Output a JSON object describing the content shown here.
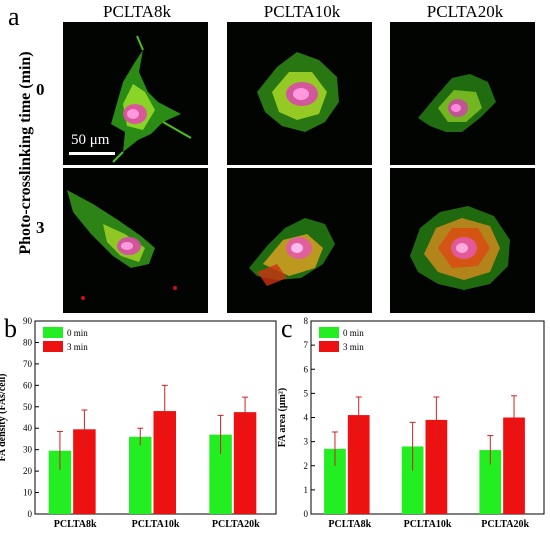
{
  "panel_a": {
    "letter": "a",
    "columns": [
      "PCLTA8k",
      "PCLTA10k",
      "PCLTA20k"
    ],
    "y_title": "Photo-crosslinking time (min)",
    "rows": [
      "0",
      "3"
    ],
    "scale_label": "50 μm"
  },
  "colors": {
    "green": "#22ee22",
    "red": "#ee1111",
    "pink": "#ff88ee"
  },
  "chart_data": [
    {
      "type": "bar",
      "panel": "b",
      "categories": [
        "PCLTA8k",
        "PCLTA10k",
        "PCLTA20k"
      ],
      "series": [
        {
          "name": "0 min",
          "values": [
            29.5,
            36,
            37
          ],
          "errors": [
            9,
            4,
            9
          ]
        },
        {
          "name": "3 min",
          "values": [
            39.5,
            48,
            47.5
          ],
          "errors": [
            9,
            12,
            7
          ]
        }
      ],
      "xlabel": "",
      "ylabel": "FA density (FAs/cell)",
      "ylim": [
        0,
        90
      ],
      "yticks": [
        0,
        10,
        20,
        30,
        40,
        50,
        60,
        70,
        80,
        90
      ],
      "legend_position": "top-left",
      "grid": false
    },
    {
      "type": "bar",
      "panel": "c",
      "categories": [
        "PCLTA8k",
        "PCLTA10k",
        "PCLTA20k"
      ],
      "series": [
        {
          "name": "0 min",
          "values": [
            2.7,
            2.8,
            2.65
          ],
          "errors": [
            0.7,
            1.0,
            0.6
          ]
        },
        {
          "name": "3 min",
          "values": [
            4.1,
            3.9,
            4.0
          ],
          "errors": [
            0.75,
            0.95,
            0.9
          ]
        }
      ],
      "xlabel": "",
      "ylabel": "FA area (μm²)",
      "ylim": [
        0,
        8
      ],
      "yticks": [
        0,
        1,
        2,
        3,
        4,
        5,
        6,
        7,
        8
      ],
      "legend_position": "top-left",
      "grid": false
    }
  ]
}
